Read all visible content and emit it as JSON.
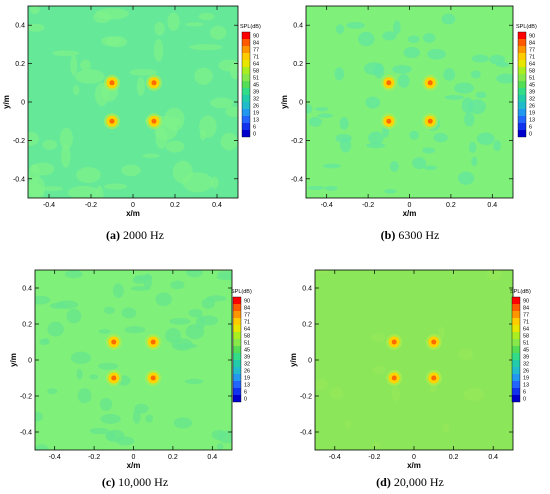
{
  "panels": [
    {
      "label": "(a)",
      "caption": "2000 Hz",
      "field_color": "#66e899",
      "patch_color": "#7ff28a",
      "chart_data": {
        "type": "heatmap",
        "xlabel": "x/m",
        "ylabel": "y/m",
        "xlim": [
          -0.5,
          0.5
        ],
        "ylim": [
          -0.5,
          0.5
        ],
        "xticks": [
          "-0.4",
          "-0.2",
          "0",
          "0.2",
          "0.4"
        ],
        "yticks": [
          "0.4",
          "0.2",
          "0",
          "-0.2",
          "-0.4"
        ],
        "sources": [
          [
            -0.1,
            0.1
          ],
          [
            0.1,
            0.1
          ],
          [
            -0.1,
            -0.1
          ],
          [
            0.1,
            -0.1
          ]
        ],
        "background_level_db": 42,
        "colorbar": {
          "title": "SPL(dB)",
          "levels": [
            "90",
            "84",
            "77",
            "71",
            "64",
            "58",
            "51",
            "45",
            "39",
            "32",
            "26",
            "19",
            "13",
            "6",
            "0"
          ]
        }
      }
    },
    {
      "label": "(b)",
      "caption": "6300 Hz",
      "field_color": "#7ff07a",
      "patch_color": "#62e6a0",
      "chart_data": {
        "type": "heatmap",
        "xlabel": "x/m",
        "ylabel": "y/m",
        "xlim": [
          -0.5,
          0.5
        ],
        "ylim": [
          -0.5,
          0.5
        ],
        "xticks": [
          "-0.4",
          "-0.2",
          "0",
          "0.2",
          "0.4"
        ],
        "yticks": [
          "0.4",
          "0.2",
          "0",
          "-0.2",
          "-0.4"
        ],
        "sources": [
          [
            -0.1,
            0.1
          ],
          [
            0.1,
            0.1
          ],
          [
            -0.1,
            -0.1
          ],
          [
            0.1,
            -0.1
          ]
        ],
        "background_level_db": 47,
        "colorbar": {
          "title": "SPL(dB)",
          "levels": [
            "90",
            "84",
            "77",
            "71",
            "64",
            "58",
            "51",
            "45",
            "39",
            "32",
            "26",
            "19",
            "13",
            "6",
            "0"
          ]
        }
      }
    },
    {
      "label": "(c)",
      "caption": "10,000 Hz",
      "field_color": "#7ff07a",
      "patch_color": "#66e58f",
      "chart_data": {
        "type": "heatmap",
        "xlabel": "x/m",
        "ylabel": "y/m",
        "xlim": [
          -0.5,
          0.5
        ],
        "ylim": [
          -0.5,
          0.5
        ],
        "xticks": [
          "-0.4",
          "-0.2",
          "0",
          "0.2",
          "0.4"
        ],
        "yticks": [
          "0.4",
          "0.2",
          "0",
          "-0.2",
          "-0.4"
        ],
        "sources": [
          [
            -0.1,
            0.1
          ],
          [
            0.1,
            0.1
          ],
          [
            -0.1,
            -0.1
          ],
          [
            0.1,
            -0.1
          ]
        ],
        "background_level_db": 48,
        "colorbar": {
          "title": "SPL(dB)",
          "levels": [
            "90",
            "84",
            "77",
            "71",
            "64",
            "58",
            "51",
            "45",
            "39",
            "32",
            "26",
            "19",
            "13",
            "6",
            "0"
          ]
        }
      }
    },
    {
      "label": "(d)",
      "caption": "20,000 Hz",
      "field_color": "#8ce65a",
      "patch_color": "#95e85a",
      "chart_data": {
        "type": "heatmap",
        "xlabel": "x/m",
        "ylabel": "y/m",
        "xlim": [
          -0.5,
          0.5
        ],
        "ylim": [
          -0.5,
          0.5
        ],
        "xticks": [
          "-0.4",
          "-0.2",
          "0",
          "0.2",
          "0.4"
        ],
        "yticks": [
          "0.4",
          "0.2",
          "0",
          "-0.2",
          "-0.4"
        ],
        "sources": [
          [
            -0.1,
            0.1
          ],
          [
            0.1,
            0.1
          ],
          [
            -0.1,
            -0.1
          ],
          [
            0.1,
            -0.1
          ]
        ],
        "background_level_db": 53,
        "colorbar": {
          "title": "SPL(dB)",
          "levels": [
            "90",
            "84",
            "77",
            "71",
            "64",
            "58",
            "51",
            "45",
            "39",
            "32",
            "26",
            "19",
            "13",
            "6",
            "0"
          ]
        }
      }
    }
  ],
  "colorbar_colors": [
    "#ff0000",
    "#ff5a00",
    "#ff9600",
    "#ffcc00",
    "#e6e600",
    "#aaee22",
    "#88e84a",
    "#55dd55",
    "#33dd88",
    "#22ccaa",
    "#22bbcc",
    "#2299ee",
    "#2266ff",
    "#1133ee",
    "#0000cc"
  ]
}
